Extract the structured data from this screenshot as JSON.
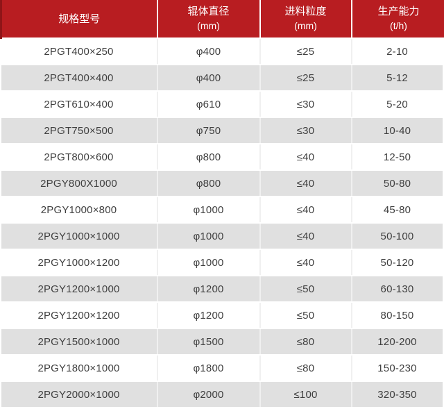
{
  "chart_data": {
    "type": "table",
    "title": "",
    "columns": [
      {
        "label": "规格型号",
        "sub": ""
      },
      {
        "label": "辊体直径",
        "sub": "(mm)"
      },
      {
        "label": "进料粒度",
        "sub": "(mm)"
      },
      {
        "label": "生产能力",
        "sub": "(t/h)"
      }
    ],
    "rows": [
      [
        "2PGT400×250",
        "φ400",
        "≤25",
        "2-10"
      ],
      [
        "2PGT400×400",
        "φ400",
        "≤25",
        "5-12"
      ],
      [
        "2PGT610×400",
        "φ610",
        "≤30",
        "5-20"
      ],
      [
        "2PGT750×500",
        "φ750",
        "≤30",
        "10-40"
      ],
      [
        "2PGT800×600",
        "φ800",
        "≤40",
        "12-50"
      ],
      [
        "2PGY800X1000",
        "φ800",
        "≤40",
        "50-80"
      ],
      [
        "2PGY1000×800",
        "φ1000",
        "≤40",
        "45-80"
      ],
      [
        "2PGY1000×1000",
        "φ1000",
        "≤40",
        "50-100"
      ],
      [
        "2PGY1000×1200",
        "φ1000",
        "≤40",
        "50-120"
      ],
      [
        "2PGY1200×1000",
        "φ1200",
        "≤50",
        "60-130"
      ],
      [
        "2PGY1200×1200",
        "φ1200",
        "≤50",
        "80-150"
      ],
      [
        "2PGY1500×1000",
        "φ1500",
        "≤80",
        "120-200"
      ],
      [
        "2PGY1800×1000",
        "φ1800",
        "≤80",
        "150-230"
      ],
      [
        "2PGY2000×1000",
        "φ2000",
        "≤100",
        "320-350"
      ]
    ],
    "colors": {
      "header_bg": "#b81d21",
      "header_accent": "#8f1518",
      "header_text": "#ffffff",
      "row_bg": "#ffffff",
      "row_alt_bg": "#e0e0e0",
      "cell_text": "#3f3f3f",
      "column_divider": "#f0f0f0"
    }
  }
}
